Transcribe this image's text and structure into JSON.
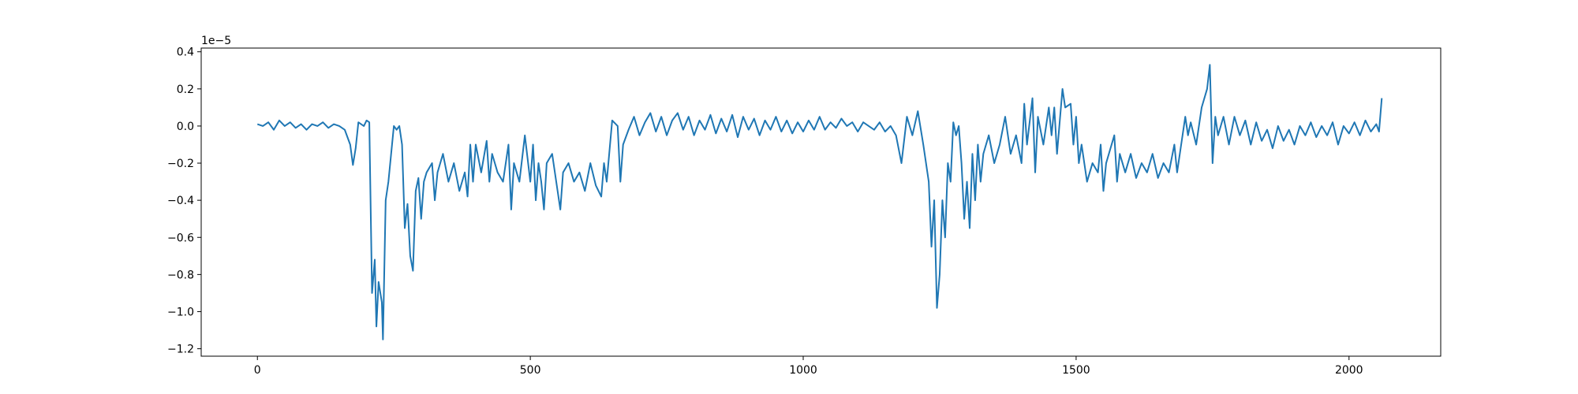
{
  "chart_data": {
    "type": "line",
    "y_offset_label": "1e−5",
    "x": [
      0,
      10,
      20,
      30,
      40,
      50,
      60,
      70,
      80,
      90,
      100,
      110,
      120,
      130,
      140,
      150,
      160,
      170,
      175,
      180,
      185,
      195,
      200,
      205,
      210,
      215,
      218,
      222,
      228,
      230,
      235,
      240,
      245,
      250,
      255,
      260,
      265,
      270,
      275,
      280,
      285,
      290,
      295,
      300,
      305,
      310,
      320,
      325,
      330,
      340,
      350,
      360,
      370,
      380,
      385,
      390,
      395,
      400,
      410,
      420,
      425,
      430,
      440,
      450,
      460,
      465,
      470,
      480,
      490,
      500,
      505,
      510,
      515,
      520,
      525,
      530,
      540,
      550,
      555,
      560,
      570,
      580,
      590,
      600,
      610,
      620,
      630,
      635,
      640,
      650,
      660,
      665,
      670,
      680,
      690,
      700,
      710,
      720,
      730,
      740,
      750,
      760,
      770,
      780,
      790,
      800,
      810,
      820,
      830,
      840,
      850,
      860,
      870,
      880,
      890,
      900,
      910,
      920,
      930,
      940,
      950,
      960,
      970,
      980,
      990,
      1000,
      1010,
      1020,
      1030,
      1040,
      1050,
      1060,
      1070,
      1080,
      1090,
      1100,
      1110,
      1120,
      1130,
      1140,
      1150,
      1160,
      1170,
      1180,
      1190,
      1200,
      1210,
      1220,
      1230,
      1235,
      1240,
      1245,
      1250,
      1255,
      1260,
      1265,
      1270,
      1275,
      1280,
      1285,
      1290,
      1295,
      1300,
      1305,
      1310,
      1315,
      1320,
      1325,
      1330,
      1340,
      1350,
      1360,
      1370,
      1380,
      1390,
      1400,
      1405,
      1410,
      1420,
      1425,
      1430,
      1440,
      1450,
      1455,
      1460,
      1465,
      1475,
      1480,
      1490,
      1495,
      1500,
      1505,
      1510,
      1520,
      1530,
      1540,
      1545,
      1550,
      1555,
      1560,
      1570,
      1575,
      1580,
      1590,
      1600,
      1610,
      1620,
      1630,
      1640,
      1650,
      1660,
      1670,
      1680,
      1685,
      1690,
      1700,
      1705,
      1710,
      1720,
      1730,
      1740,
      1745,
      1750,
      1755,
      1760,
      1770,
      1780,
      1790,
      1800,
      1810,
      1820,
      1830,
      1840,
      1850,
      1860,
      1870,
      1880,
      1890,
      1900,
      1910,
      1920,
      1930,
      1940,
      1950,
      1960,
      1970,
      1980,
      1990,
      2000,
      2010,
      2020,
      2030,
      2040,
      2050,
      2055,
      2060
    ],
    "series": [
      {
        "color": "#1f77b4",
        "values": [
          0.01,
          0,
          0.02,
          -0.02,
          0.03,
          0,
          0.02,
          -0.01,
          0.01,
          -0.02,
          0.01,
          0,
          0.02,
          -0.01,
          0.01,
          0,
          -0.02,
          -0.1,
          -0.21,
          -0.12,
          0.02,
          0,
          0.03,
          0.02,
          -0.9,
          -0.72,
          -1.08,
          -0.84,
          -0.95,
          -1.15,
          -0.4,
          -0.3,
          -0.15,
          0,
          -0.02,
          0,
          -0.1,
          -0.55,
          -0.42,
          -0.7,
          -0.78,
          -0.35,
          -0.28,
          -0.5,
          -0.3,
          -0.25,
          -0.2,
          -0.4,
          -0.25,
          -0.15,
          -0.3,
          -0.2,
          -0.35,
          -0.25,
          -0.38,
          -0.1,
          -0.3,
          -0.1,
          -0.25,
          -0.08,
          -0.3,
          -0.15,
          -0.25,
          -0.3,
          -0.1,
          -0.45,
          -0.2,
          -0.3,
          -0.05,
          -0.3,
          -0.1,
          -0.4,
          -0.2,
          -0.3,
          -0.45,
          -0.2,
          -0.15,
          -0.35,
          -0.45,
          -0.25,
          -0.2,
          -0.3,
          -0.25,
          -0.35,
          -0.2,
          -0.32,
          -0.38,
          -0.2,
          -0.3,
          0.03,
          0,
          -0.3,
          -0.1,
          -0.02,
          0.05,
          -0.05,
          0.02,
          0.07,
          -0.03,
          0.05,
          -0.05,
          0.03,
          0.07,
          -0.02,
          0.05,
          -0.05,
          0.03,
          -0.02,
          0.06,
          -0.04,
          0.04,
          -0.03,
          0.06,
          -0.06,
          0.05,
          -0.02,
          0.04,
          -0.05,
          0.03,
          -0.02,
          0.05,
          -0.03,
          0.03,
          -0.04,
          0.02,
          -0.03,
          0.03,
          -0.02,
          0.05,
          -0.02,
          0.02,
          -0.01,
          0.04,
          0,
          0.02,
          -0.03,
          0.02,
          0,
          -0.02,
          0.02,
          -0.03,
          0,
          -0.05,
          -0.2,
          0.05,
          -0.05,
          0.08,
          -0.1,
          -0.3,
          -0.65,
          -0.4,
          -0.98,
          -0.8,
          -0.4,
          -0.6,
          -0.2,
          -0.3,
          0.02,
          -0.05,
          0,
          -0.2,
          -0.5,
          -0.3,
          -0.55,
          -0.15,
          -0.4,
          -0.1,
          -0.3,
          -0.15,
          -0.05,
          -0.2,
          -0.1,
          0.05,
          -0.15,
          -0.05,
          -0.2,
          0.12,
          -0.1,
          0.15,
          -0.25,
          0.05,
          -0.1,
          0.1,
          -0.05,
          0.1,
          -0.15,
          0.2,
          0.1,
          0.12,
          -0.1,
          0.05,
          -0.2,
          -0.1,
          -0.3,
          -0.2,
          -0.25,
          -0.1,
          -0.35,
          -0.2,
          -0.15,
          -0.05,
          -0.3,
          -0.15,
          -0.25,
          -0.15,
          -0.28,
          -0.2,
          -0.25,
          -0.15,
          -0.28,
          -0.2,
          -0.25,
          -0.1,
          -0.25,
          -0.15,
          0.05,
          -0.05,
          0.02,
          -0.1,
          0.1,
          0.2,
          0.33,
          -0.2,
          0.05,
          -0.05,
          0.05,
          -0.1,
          0.05,
          -0.05,
          0.03,
          -0.1,
          0.02,
          -0.08,
          -0.02,
          -0.12,
          0,
          -0.08,
          -0.02,
          -0.1,
          0,
          -0.05,
          0.02,
          -0.06,
          0,
          -0.05,
          0.02,
          -0.1,
          0,
          -0.04,
          0.02,
          -0.05,
          0.03,
          -0.03,
          0.01,
          -0.03,
          0.15
        ]
      }
    ],
    "xlim": [
      -103,
      2168
    ],
    "xticks": [
      0,
      500,
      1000,
      1500,
      2000
    ],
    "ylim": [
      -1.24,
      0.42
    ],
    "yticks": [
      {
        "value": -1.2,
        "label": "−1.2"
      },
      {
        "value": -1.0,
        "label": "−1.0"
      },
      {
        "value": -0.8,
        "label": "−0.8"
      },
      {
        "value": -0.6,
        "label": "−0.6"
      },
      {
        "value": -0.4,
        "label": "−0.4"
      },
      {
        "value": -0.2,
        "label": "−0.2"
      },
      {
        "value": 0,
        "label": "0.0"
      },
      0.2,
      0.4
    ],
    "grid": false
  }
}
